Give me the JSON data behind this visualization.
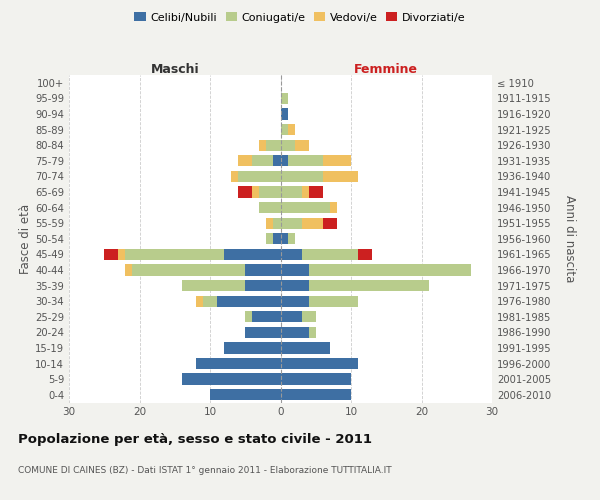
{
  "age_groups": [
    "0-4",
    "5-9",
    "10-14",
    "15-19",
    "20-24",
    "25-29",
    "30-34",
    "35-39",
    "40-44",
    "45-49",
    "50-54",
    "55-59",
    "60-64",
    "65-69",
    "70-74",
    "75-79",
    "80-84",
    "85-89",
    "90-94",
    "95-99",
    "100+"
  ],
  "birth_years": [
    "2006-2010",
    "2001-2005",
    "1996-2000",
    "1991-1995",
    "1986-1990",
    "1981-1985",
    "1976-1980",
    "1971-1975",
    "1966-1970",
    "1961-1965",
    "1956-1960",
    "1951-1955",
    "1946-1950",
    "1941-1945",
    "1936-1940",
    "1931-1935",
    "1926-1930",
    "1921-1925",
    "1916-1920",
    "1911-1915",
    "≤ 1910"
  ],
  "maschi_celibi": [
    10,
    14,
    12,
    8,
    5,
    4,
    9,
    5,
    5,
    8,
    1,
    0,
    0,
    0,
    0,
    1,
    0,
    0,
    0,
    0,
    0
  ],
  "maschi_coniugati": [
    0,
    0,
    0,
    0,
    0,
    1,
    2,
    9,
    16,
    14,
    1,
    1,
    3,
    3,
    6,
    3,
    2,
    0,
    0,
    0,
    0
  ],
  "maschi_vedovi": [
    0,
    0,
    0,
    0,
    0,
    0,
    1,
    0,
    1,
    1,
    0,
    1,
    0,
    1,
    1,
    2,
    1,
    0,
    0,
    0,
    0
  ],
  "maschi_divorziati": [
    0,
    0,
    0,
    0,
    0,
    0,
    0,
    0,
    0,
    2,
    0,
    0,
    0,
    2,
    0,
    0,
    0,
    0,
    0,
    0,
    0
  ],
  "femmine_nubili": [
    10,
    10,
    11,
    7,
    4,
    3,
    4,
    4,
    4,
    3,
    1,
    0,
    0,
    0,
    0,
    1,
    0,
    0,
    1,
    0,
    0
  ],
  "femmine_coniugate": [
    0,
    0,
    0,
    0,
    1,
    2,
    7,
    17,
    23,
    8,
    1,
    3,
    7,
    3,
    6,
    5,
    2,
    1,
    0,
    1,
    0
  ],
  "femmine_vedove": [
    0,
    0,
    0,
    0,
    0,
    0,
    0,
    0,
    0,
    0,
    0,
    3,
    1,
    1,
    5,
    4,
    2,
    1,
    0,
    0,
    0
  ],
  "femmine_divorziate": [
    0,
    0,
    0,
    0,
    0,
    0,
    0,
    0,
    0,
    2,
    0,
    2,
    0,
    2,
    0,
    0,
    0,
    0,
    0,
    0,
    0
  ],
  "color_celibi": "#3e6fa3",
  "color_coniugati": "#b8cc8c",
  "color_vedovi": "#f0c060",
  "color_divorziati": "#cc2020",
  "xlim": 30,
  "title": "Popolazione per età, sesso e stato civile - 2011",
  "subtitle": "COMUNE DI CAINES (BZ) - Dati ISTAT 1° gennaio 2011 - Elaborazione TUTTITALIA.IT",
  "ylabel_left": "Fasce di età",
  "ylabel_right": "Anni di nascita",
  "label_maschi": "Maschi",
  "label_femmine": "Femmine",
  "legend_labels": [
    "Celibi/Nubili",
    "Coniugati/e",
    "Vedovi/e",
    "Divorziati/e"
  ],
  "bg_color": "#f2f2ee",
  "plot_bg": "#ffffff"
}
